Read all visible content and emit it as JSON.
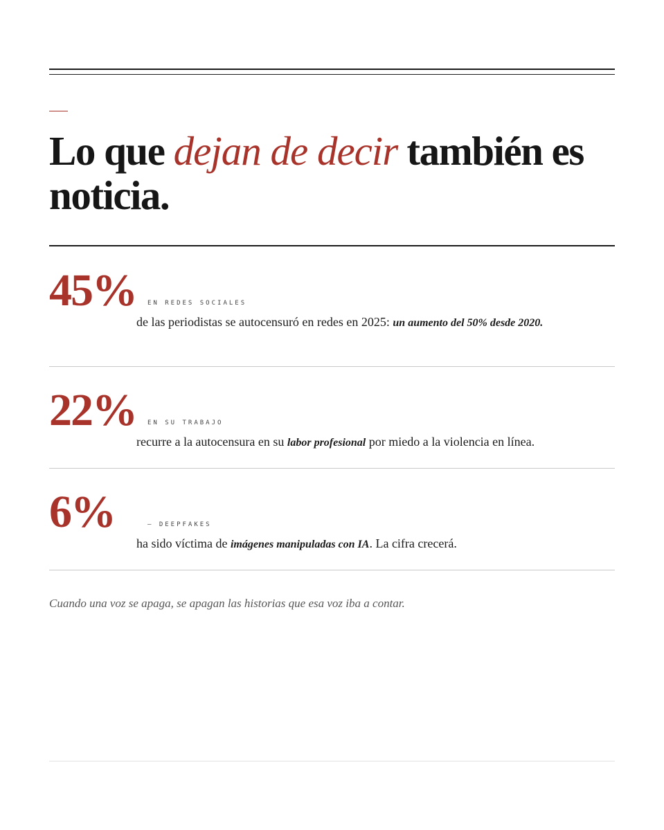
{
  "header": {
    "title": [
      "Lo que ",
      "dejan de decir",
      " también es noticia."
    ]
  },
  "stats": [
    {
      "figure": "45%",
      "label": "EN REDES SOCIALES",
      "text": [
        "de las periodistas se autocensuró en redes en 2025: ",
        "un aumento del 50% desde 2020."
      ]
    },
    {
      "figure": "22%",
      "label": "EN SU TRABAJO",
      "text": [
        "recurre a la autocensura en su ",
        "labor profesional",
        " por miedo a la violencia en línea."
      ]
    },
    {
      "figure": "6%",
      "label": "— DEEPFAKES",
      "text": [
        "ha sido víctima de ",
        "imágenes manipuladas con IA",
        ". La cifra crecerá."
      ]
    }
  ],
  "footer": {
    "quote": "Cuando una voz se apaga, se apagan las historias que esa voz iba a contar."
  }
}
